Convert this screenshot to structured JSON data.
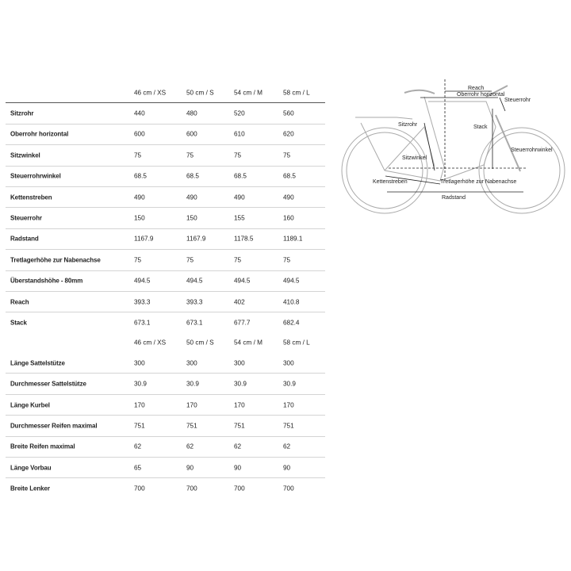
{
  "table1": {
    "headers": [
      "46 cm / XS",
      "50 cm / S",
      "54 cm / M",
      "58 cm / L"
    ],
    "rows": [
      {
        "label": "Sitzrohr",
        "values": [
          "440",
          "480",
          "520",
          "560"
        ]
      },
      {
        "label": "Oberrohr horizontal",
        "values": [
          "600",
          "600",
          "610",
          "620"
        ]
      },
      {
        "label": "Sitzwinkel",
        "values": [
          "75",
          "75",
          "75",
          "75"
        ]
      },
      {
        "label": "Steuerrohrwinkel",
        "values": [
          "68.5",
          "68.5",
          "68.5",
          "68.5"
        ]
      },
      {
        "label": "Kettenstreben",
        "values": [
          "490",
          "490",
          "490",
          "490"
        ]
      },
      {
        "label": "Steuerrohr",
        "values": [
          "150",
          "150",
          "155",
          "160"
        ]
      },
      {
        "label": "Radstand",
        "values": [
          "1167.9",
          "1167.9",
          "1178.5",
          "1189.1"
        ]
      },
      {
        "label": "Tretlagerhöhe zur Nabenachse",
        "values": [
          "75",
          "75",
          "75",
          "75"
        ]
      },
      {
        "label": "Überstandshöhe - 80mm",
        "values": [
          "494.5",
          "494.5",
          "494.5",
          "494.5"
        ]
      },
      {
        "label": "Reach",
        "values": [
          "393.3",
          "393.3",
          "402",
          "410.8"
        ]
      },
      {
        "label": "Stack",
        "values": [
          "673.1",
          "673.1",
          "677.7",
          "682.4"
        ]
      }
    ]
  },
  "table2": {
    "headers": [
      "46 cm / XS",
      "50 cm / S",
      "54 cm / M",
      "58 cm / L"
    ],
    "rows": [
      {
        "label": "Länge Sattelstütze",
        "values": [
          "300",
          "300",
          "300",
          "300"
        ]
      },
      {
        "label": "Durchmesser Sattelstütze",
        "values": [
          "30.9",
          "30.9",
          "30.9",
          "30.9"
        ]
      },
      {
        "label": "Länge Kurbel",
        "values": [
          "170",
          "170",
          "170",
          "170"
        ]
      },
      {
        "label": "Durchmesser Reifen maximal",
        "values": [
          "751",
          "751",
          "751",
          "751"
        ]
      },
      {
        "label": "Breite Reifen maximal",
        "values": [
          "62",
          "62",
          "62",
          "62"
        ]
      },
      {
        "label": "Länge Vorbau",
        "values": [
          "65",
          "90",
          "90",
          "90"
        ]
      },
      {
        "label": "Breite Lenker",
        "values": [
          "700",
          "700",
          "700",
          "700"
        ]
      }
    ]
  },
  "diagram": {
    "labels": {
      "reach": "Reach",
      "oberrohr": "Oberrohr horizontal",
      "steuerrohr": "Steuerrohr",
      "sitzrohr": "Sitzrohr",
      "stack": "Stack",
      "steuerrohrwinkel": "Steuerrohrwinkel",
      "sitzwinkel": "Sitzwinkel",
      "kettenstreben": "Kettenstreben",
      "tretlager": "Tretlagerhöhe zur Nabenachse",
      "radstand": "Radstand"
    }
  }
}
